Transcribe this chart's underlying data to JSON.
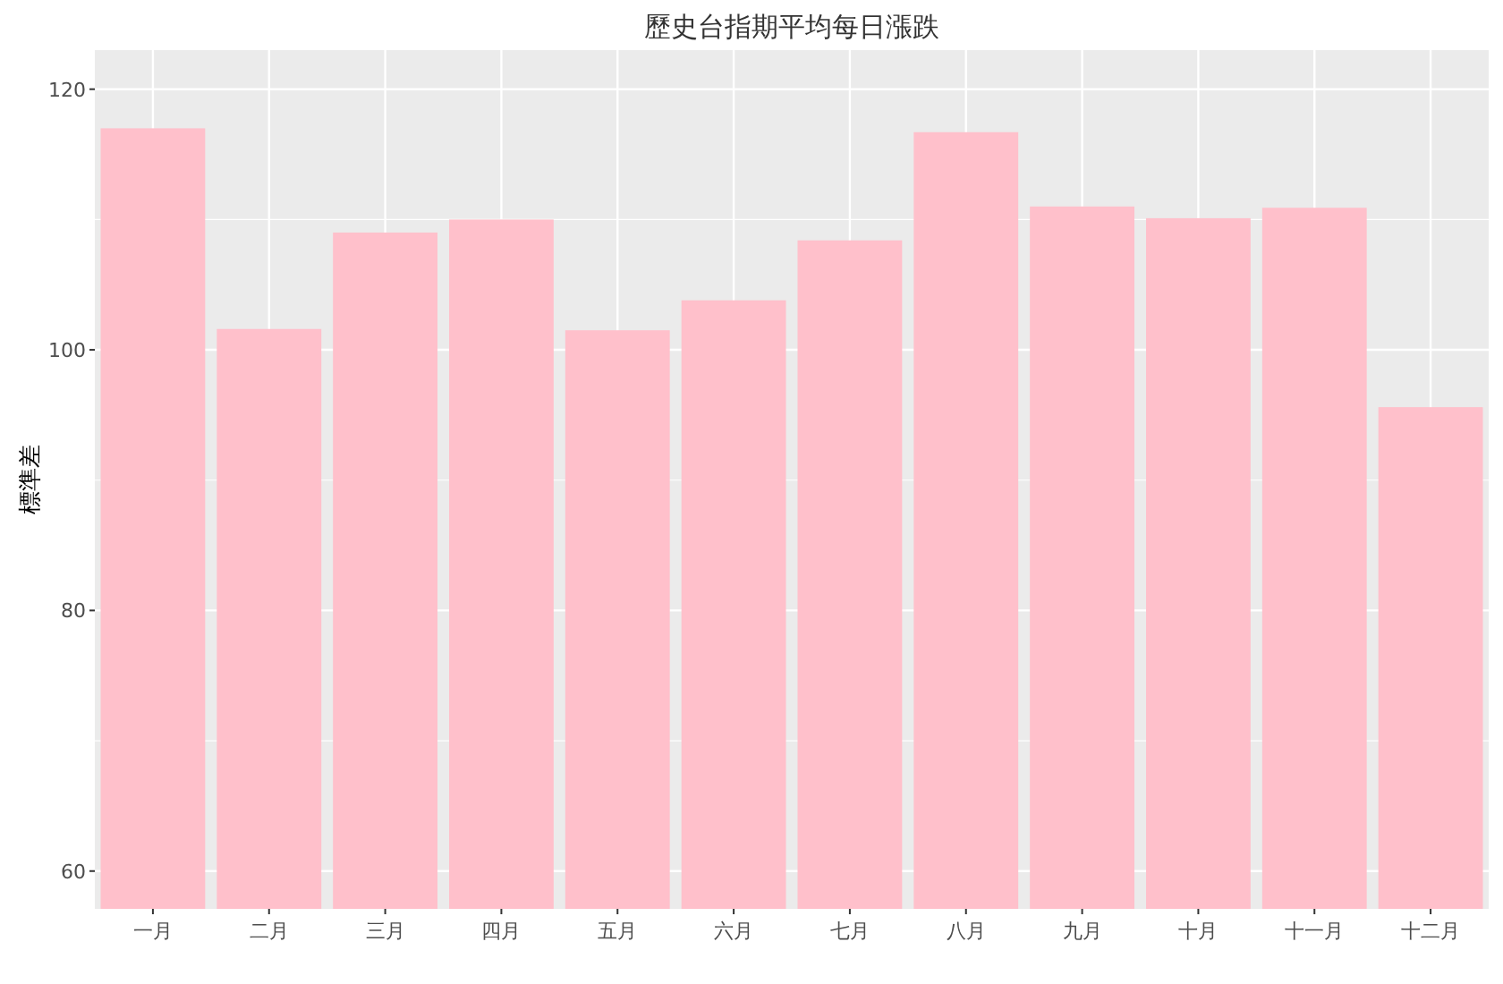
{
  "chart_data": {
    "type": "bar",
    "title": "歷史台指期平均每日漲跌",
    "ylabel": "標準差",
    "categories": [
      "一月",
      "二月",
      "三月",
      "四月",
      "五月",
      "六月",
      "七月",
      "八月",
      "九月",
      "十月",
      "十一月",
      "十二月"
    ],
    "values": [
      117.0,
      101.6,
      109.0,
      110.0,
      101.5,
      103.8,
      108.4,
      116.7,
      111.0,
      110.1,
      110.9,
      95.6
    ],
    "color": "#ffc0cb",
    "ylim": [
      57.1,
      123.0
    ],
    "yticks": [
      60,
      80,
      100,
      120
    ],
    "grid": true
  }
}
